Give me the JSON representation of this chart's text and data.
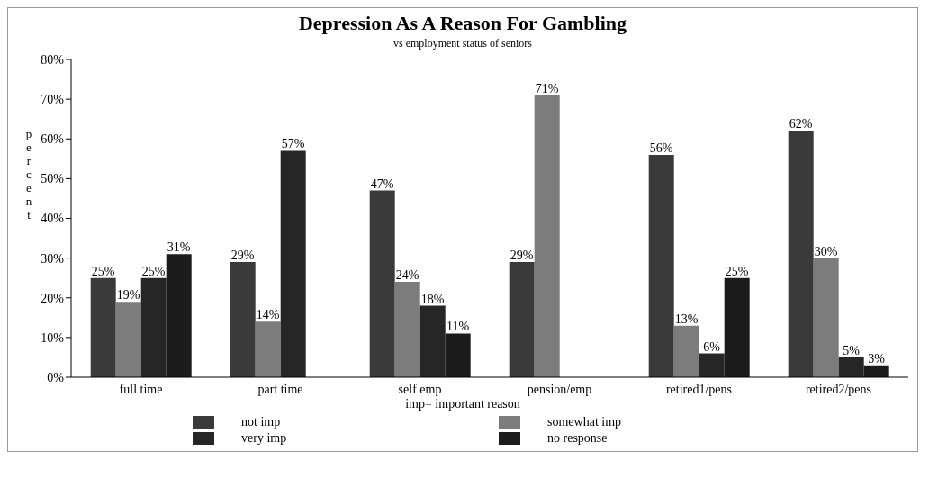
{
  "chart_data": {
    "type": "bar",
    "title": "Depression As A Reason For Gambling",
    "subtitle": "vs employment status of seniors",
    "xlabel": "imp= important reason",
    "ylabel": "percent",
    "categories": [
      "full time",
      "part time",
      "self emp",
      "pension/emp",
      "retired1/pens",
      "retired2/pens"
    ],
    "series": [
      {
        "name": "not imp",
        "color": "#3a3a3a",
        "values": [
          25,
          29,
          47,
          29,
          56,
          62
        ],
        "value_labels": [
          "25%",
          "29%",
          "47%",
          "29%",
          "56%",
          "62%"
        ]
      },
      {
        "name": "somewhat imp",
        "color": "#7c7c7c",
        "values": [
          19,
          14,
          24,
          71,
          13,
          30
        ],
        "value_labels": [
          "19%",
          "14%",
          "24%",
          "71%",
          "13%",
          "30%"
        ]
      },
      {
        "name": "very imp",
        "color": "#262626",
        "values": [
          25,
          57,
          18,
          null,
          6,
          5
        ],
        "value_labels": [
          "25%",
          "57%",
          "18%",
          null,
          "6%",
          "5%"
        ]
      },
      {
        "name": "no response",
        "color": "#1c1c1c",
        "values": [
          31,
          null,
          11,
          null,
          25,
          3
        ],
        "value_labels": [
          "31%",
          null,
          "11%",
          null,
          "25%",
          "3%"
        ]
      }
    ],
    "ylim": [
      0,
      80
    ],
    "yticks": [
      {
        "value": 0,
        "label": "0%"
      },
      {
        "value": 10,
        "label": "10%"
      },
      {
        "value": 20,
        "label": "20%"
      },
      {
        "value": 30,
        "label": "30%"
      },
      {
        "value": 40,
        "label": "40%"
      },
      {
        "value": 50,
        "label": "50%"
      },
      {
        "value": 60,
        "label": "60%"
      },
      {
        "value": 70,
        "label": "70%"
      },
      {
        "value": 80,
        "label": "80%"
      }
    ],
    "grid": false,
    "legend": "bottom"
  }
}
